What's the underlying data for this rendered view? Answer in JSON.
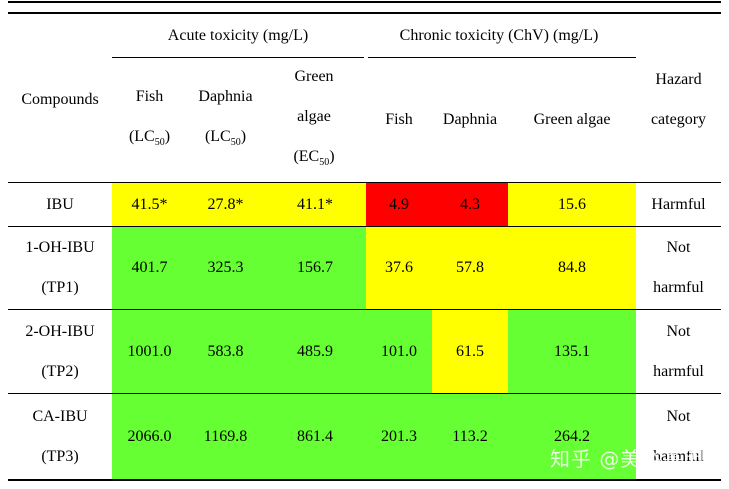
{
  "headers": {
    "compounds": "Compounds",
    "acute_group": "Acute toxicity (mg/L)",
    "chronic_group": "Chronic toxicity (ChV) (mg/L)",
    "hazard": [
      "Hazard",
      "category"
    ],
    "acute_fish": [
      "Fish",
      "(LC",
      "50",
      ")"
    ],
    "acute_daphnia": [
      "Daphnia",
      "(LC",
      "50",
      ")"
    ],
    "acute_algae": [
      "Green",
      "algae",
      "(EC",
      "50",
      ")"
    ],
    "chronic_fish": "Fish",
    "chronic_daphnia": "Daphnia",
    "chronic_algae": "Green algae"
  },
  "rows": [
    {
      "name": [
        "IBU"
      ],
      "values": [
        "41.5*",
        "27.8*",
        "41.1*",
        "4.9",
        "4.3",
        "15.6"
      ],
      "colors": [
        "yellow",
        "yellow",
        "yellow",
        "red",
        "red",
        "yellow"
      ],
      "hazard": [
        "Harmful"
      ]
    },
    {
      "name": [
        "1-OH-IBU",
        "(TP1)"
      ],
      "values": [
        "401.7",
        "325.3",
        "156.7",
        "37.6",
        "57.8",
        "84.8"
      ],
      "colors": [
        "green",
        "green",
        "green",
        "yellow",
        "yellow",
        "yellow"
      ],
      "hazard": [
        "Not",
        "harmful"
      ]
    },
    {
      "name": [
        "2-OH-IBU",
        "(TP2)"
      ],
      "values": [
        "1001.0",
        "583.8",
        "485.9",
        "101.0",
        "61.5",
        "135.1"
      ],
      "colors": [
        "green",
        "green",
        "green",
        "green",
        "yellow",
        "green"
      ],
      "hazard": [
        "Not",
        "harmful"
      ]
    },
    {
      "name": [
        "CA-IBU",
        "(TP3)"
      ],
      "values": [
        "2066.0",
        "1169.8",
        "861.4",
        "201.3",
        "113.2",
        "264.2"
      ],
      "colors": [
        "green",
        "green",
        "green",
        "green",
        "green",
        "green"
      ],
      "hazard": [
        "Not",
        "harmful"
      ]
    }
  ],
  "palette": {
    "yellow": "#ffff00",
    "green": "#66ff33",
    "red": "#ff0000"
  },
  "watermark": "知乎 @美裕基因"
}
